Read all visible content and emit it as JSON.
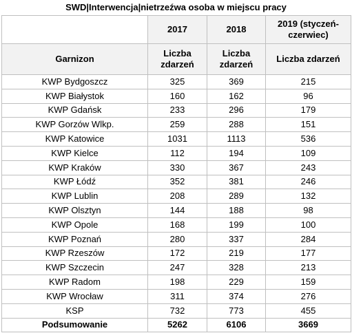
{
  "title": "SWD|Interwencja|nietrzeźwa osoba w miejscu pracy",
  "header": {
    "label": "Garnizon",
    "columns": [
      "2017",
      "2018",
      "2019 (styczeń-czerwiec)"
    ],
    "sublabels": [
      "Liczba zdarzeń",
      "Liczba zdarzeń",
      "Liczba zdarzeń"
    ]
  },
  "rows": [
    [
      "KWP Bydgoszcz",
      325,
      369,
      215
    ],
    [
      "KWP Białystok",
      160,
      162,
      96
    ],
    [
      "KWP Gdańsk",
      233,
      296,
      179
    ],
    [
      "KWP Gorzów Wlkp.",
      259,
      288,
      151
    ],
    [
      "KWP Katowice",
      1031,
      1113,
      536
    ],
    [
      "KWP Kielce",
      112,
      194,
      109
    ],
    [
      "KWP Kraków",
      330,
      367,
      243
    ],
    [
      "KWP Łódź",
      352,
      381,
      246
    ],
    [
      "KWP Lublin",
      208,
      289,
      132
    ],
    [
      "KWP Olsztyn",
      144,
      188,
      98
    ],
    [
      "KWP Opole",
      168,
      199,
      100
    ],
    [
      "KWP Poznań",
      280,
      337,
      284
    ],
    [
      "KWP Rzeszów",
      172,
      219,
      177
    ],
    [
      "KWP Szczecin",
      247,
      328,
      213
    ],
    [
      "KWP Radom",
      198,
      229,
      159
    ],
    [
      "KWP Wrocław",
      311,
      374,
      276
    ],
    [
      "KSP",
      732,
      773,
      455
    ]
  ],
  "total": {
    "label": "Podsumowanie",
    "values": [
      5262,
      6106,
      3669
    ]
  }
}
